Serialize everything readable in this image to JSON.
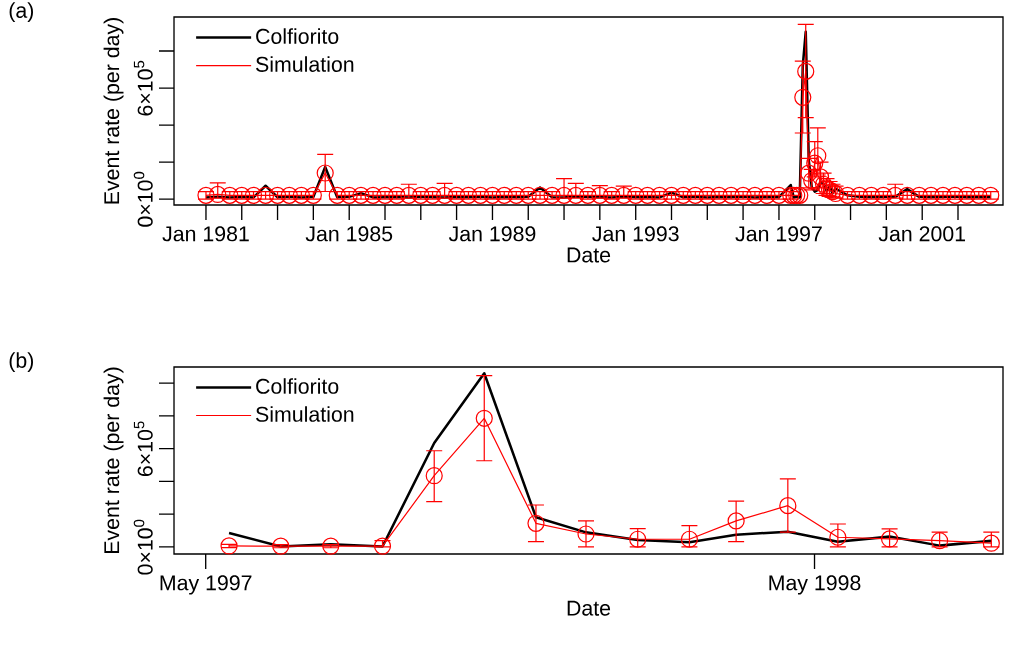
{
  "chart_data": [
    {
      "type": "line",
      "title": "(a)",
      "xlabel": "Date",
      "ylabel": "Event rate (per day)",
      "legend": "top left",
      "x": [
        "1981-01",
        "1981-05",
        "1981-09",
        "1982-01",
        "1982-05",
        "1982-09",
        "1983-01",
        "1983-05",
        "1983-09",
        "1984-01",
        "1984-05",
        "1984-09",
        "1985-01",
        "1985-05",
        "1985-09",
        "1986-01",
        "1986-05",
        "1986-09",
        "1987-01",
        "1987-05",
        "1987-09",
        "1988-01",
        "1988-05",
        "1988-09",
        "1989-01",
        "1989-05",
        "1989-09",
        "1990-01",
        "1990-05",
        "1990-09",
        "1991-01",
        "1991-05",
        "1991-09",
        "1992-01",
        "1992-05",
        "1992-09",
        "1993-01",
        "1993-05",
        "1993-09",
        "1994-01",
        "1994-05",
        "1994-09",
        "1995-01",
        "1995-05",
        "1995-09",
        "1996-01",
        "1996-05",
        "1996-09",
        "1997-01",
        "1997-05",
        "1997-06",
        "1997-07",
        "1997-08",
        "1997-09",
        "1997-10",
        "1997-11",
        "1997-12",
        "1998-01",
        "1998-02",
        "1998-03",
        "1998-04",
        "1998-05",
        "1998-06",
        "1998-07",
        "1998-08",
        "1998-12",
        "1999-04",
        "1999-08",
        "1999-12",
        "2000-04",
        "2000-08",
        "2000-12",
        "2001-04",
        "2001-08",
        "2001-12",
        "2002-04",
        "2002-08",
        "2002-12"
      ],
      "series": [
        {
          "name": "Colfiorito",
          "color": "#000000",
          "marker": "none",
          "values": [
            9000,
            12000,
            8000,
            11000,
            9000,
            72000,
            10000,
            12000,
            9000,
            11000,
            174000,
            10000,
            12000,
            32000,
            9000,
            10000,
            11000,
            9000,
            12000,
            10000,
            9000,
            11000,
            10000,
            12000,
            9000,
            11000,
            10000,
            12000,
            62000,
            10000,
            9000,
            14000,
            11000,
            10000,
            9000,
            12000,
            10000,
            11000,
            9000,
            35000,
            10000,
            12000,
            9000,
            11000,
            10000,
            12000,
            9000,
            11000,
            10000,
            76000,
            8000,
            12000,
            9000,
            720000,
            904000,
            210000,
            65000,
            40000,
            50000,
            94000,
            84000,
            46000,
            70000,
            32000,
            57000,
            20000,
            12000,
            10000,
            11000,
            12000,
            54000,
            12000,
            10000,
            11000,
            14000,
            10000,
            11000,
            10000
          ]
        },
        {
          "name": "Simulation",
          "color": "#ff0000",
          "marker": "circle",
          "values": [
            20000,
            25000,
            20000,
            20000,
            20000,
            20000,
            20000,
            20000,
            20000,
            20000,
            141000,
            20000,
            20000,
            20000,
            20000,
            20000,
            20000,
            20000,
            20000,
            20000,
            20000,
            20000,
            20000,
            20000,
            20000,
            20000,
            20000,
            20000,
            20000,
            20000,
            20000,
            20000,
            20000,
            20000,
            20000,
            20000,
            20000,
            20000,
            20000,
            20000,
            20000,
            20000,
            20000,
            20000,
            20000,
            20000,
            20000,
            20000,
            20000,
            20000,
            20000,
            20000,
            20000,
            550000,
            690000,
            140000,
            100000,
            194000,
            234000,
            120000,
            80000,
            60000,
            50000,
            40000,
            30000,
            20000,
            20000,
            20000,
            20000,
            20000,
            20000,
            20000,
            20000,
            20000,
            20000,
            20000,
            20000,
            20000
          ],
          "errors": [
            20000,
            [
              5000,
              87000
            ],
            20000,
            20000,
            20000,
            20000,
            20000,
            20000,
            20000,
            20000,
            [
              41000,
              242000
            ],
            20000,
            20000,
            20000,
            20000,
            20000,
            20000,
            [
              5000,
              80000
            ],
            20000,
            20000,
            [
              5000,
              85000
            ],
            20000,
            20000,
            20000,
            20000,
            20000,
            20000,
            20000,
            20000,
            20000,
            [
              5000,
              110000
            ],
            [
              5000,
              85000
            ],
            20000,
            [
              5000,
              73000
            ],
            20000,
            [
              5000,
              70000
            ],
            20000,
            20000,
            20000,
            20000,
            20000,
            20000,
            20000,
            20000,
            20000,
            20000,
            20000,
            20000,
            20000,
            20000,
            null,
            null,
            null,
            [
              357000,
              746000
            ],
            [
              440000,
              944000
            ],
            [
              60000,
              220000
            ],
            [
              50000,
              160000
            ],
            [
              120000,
              310000
            ],
            [
              130000,
              385000
            ],
            [
              60000,
              200000
            ],
            [
              30000,
              140000
            ],
            [
              20000,
              110000
            ],
            [
              15000,
              95000
            ],
            [
              10000,
              80000
            ],
            [
              5000,
              70000
            ],
            20000,
            20000,
            20000,
            20000,
            [
              5000,
              80000
            ],
            20000,
            20000,
            20000,
            20000,
            20000,
            20000,
            20000,
            20000
          ]
        }
      ],
      "xlim": [
        "1980-02-10",
        "2003-04-05"
      ],
      "xticks": [
        {
          "value": "1981-01",
          "label": "Jan 1981"
        },
        {
          "value": "1982-01",
          "label": null
        },
        {
          "value": "1983-01",
          "label": null
        },
        {
          "value": "1984-01",
          "label": null
        },
        {
          "value": "1985-01",
          "label": "Jan 1985"
        },
        {
          "value": "1986-01",
          "label": null
        },
        {
          "value": "1987-01",
          "label": null
        },
        {
          "value": "1988-01",
          "label": null
        },
        {
          "value": "1989-01",
          "label": "Jan 1989"
        },
        {
          "value": "1990-01",
          "label": null
        },
        {
          "value": "1991-01",
          "label": null
        },
        {
          "value": "1992-01",
          "label": null
        },
        {
          "value": "1993-01",
          "label": "Jan 1993"
        },
        {
          "value": "1994-01",
          "label": null
        },
        {
          "value": "1995-01",
          "label": null
        },
        {
          "value": "1996-01",
          "label": null
        },
        {
          "value": "1997-01",
          "label": "Jan 1997"
        },
        {
          "value": "1998-01",
          "label": null
        },
        {
          "value": "1999-01",
          "label": null
        },
        {
          "value": "2000-01",
          "label": null
        },
        {
          "value": "2001-01",
          "label": "Jan 2001"
        },
        {
          "value": "2002-01",
          "label": null
        }
      ],
      "ylim": [
        -32000,
        984000
      ],
      "yticks": [
        {
          "value": 0,
          "label": "0×10$^{0}$"
        },
        {
          "value": 200000,
          "label": null
        },
        {
          "value": 400000,
          "label": null
        },
        {
          "value": 600000,
          "label": "6×10$^{5}$"
        },
        {
          "value": 800000,
          "label": null
        }
      ]
    },
    {
      "type": "line",
      "title": "(b)",
      "xlabel": "Date",
      "ylabel": "Event rate (per day)",
      "legend": "top left",
      "x": [
        "1997-05-15",
        "1997-06-15",
        "1997-07-15",
        "1997-08-15",
        "1997-09-15",
        "1997-10-15",
        "1997-11-15",
        "1997-12-15",
        "1998-01-15",
        "1998-02-15",
        "1998-03-15",
        "1998-04-15",
        "1998-05-15",
        "1998-06-15",
        "1998-07-15",
        "1998-08-15"
      ],
      "series": [
        {
          "name": "Colfiorito",
          "color": "#000000",
          "marker": "none",
          "values": [
            85000,
            3000,
            16000,
            3000,
            634000,
            1060000,
            181000,
            89000,
            43000,
            29000,
            75000,
            93000,
            32000,
            63000,
            8000,
            37000
          ]
        },
        {
          "name": "Simulation",
          "color": "#ff0000",
          "marker": "circle",
          "values": [
            6000,
            5000,
            5000,
            5000,
            435000,
            785000,
            144000,
            79000,
            47000,
            47000,
            159000,
            252000,
            59000,
            49000,
            38000,
            23000
          ],
          "errors": [
            10000,
            10000,
            10000,
            [
              0,
              38000
            ],
            [
              276000,
              587000
            ],
            [
              526000,
              1045000
            ],
            [
              32000,
              256000
            ],
            [
              0,
              159000
            ],
            [
              0,
              112000
            ],
            [
              0,
              130000
            ],
            [
              32000,
              280000
            ],
            [
              90000,
              415000
            ],
            [
              0,
              140000
            ],
            [
              0,
              110000
            ],
            [
              0,
              91000
            ],
            [
              0,
              91000
            ]
          ]
        }
      ],
      "xlim": [
        "1997-04-12",
        "1998-08-22"
      ],
      "xticks": [
        {
          "value": "1997-05-01",
          "label": "May 1997"
        },
        {
          "value": "1998-05-01",
          "label": "May 1998"
        }
      ],
      "ylim": [
        -43000,
        1098000
      ],
      "yticks": [
        {
          "value": 0,
          "label": "0×10$^{0}$"
        },
        {
          "value": 200000,
          "label": null
        },
        {
          "value": 400000,
          "label": null
        },
        {
          "value": 600000,
          "label": "6×10$^{5}$"
        },
        {
          "value": 800000,
          "label": null
        },
        {
          "value": 1000000,
          "label": null
        }
      ]
    }
  ]
}
